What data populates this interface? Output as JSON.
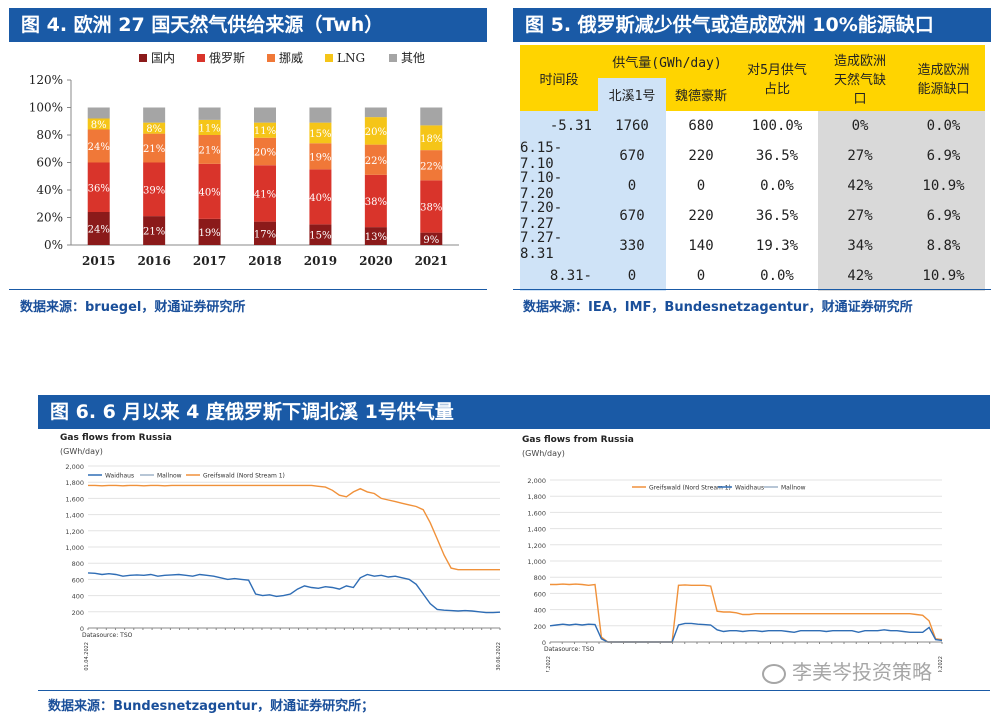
{
  "fig4": {
    "title": "图 4. 欧洲 27 国天然气供给来源（Twh）",
    "source": "数据来源：bruegel，财通证券研究所",
    "chart_data": {
      "type": "bar",
      "stacked": true,
      "categories": [
        "2015",
        "2016",
        "2017",
        "2018",
        "2019",
        "2020",
        "2021"
      ],
      "y_ticks": [
        "0%",
        "20%",
        "40%",
        "60%",
        "80%",
        "100%",
        "120%"
      ],
      "ylim": [
        0,
        120
      ],
      "legend_position": "top",
      "series": [
        {
          "name": "国内",
          "color": "#8b1a1a",
          "values": [
            24,
            21,
            19,
            17,
            15,
            13,
            9
          ],
          "labels": [
            "24%",
            "21%",
            "19%",
            "17%",
            "15%",
            "13%",
            "9%"
          ]
        },
        {
          "name": "俄罗斯",
          "color": "#d9342b",
          "values": [
            36,
            39,
            40,
            41,
            40,
            38,
            38
          ],
          "labels": [
            "36%",
            "39%",
            "40%",
            "41%",
            "40%",
            "38%",
            "38%"
          ]
        },
        {
          "name": "挪威",
          "color": "#f07838",
          "values": [
            24,
            21,
            21,
            20,
            19,
            22,
            22
          ],
          "labels": [
            "24%",
            "21%",
            "21%",
            "20%",
            "19%",
            "22%",
            "22%"
          ]
        },
        {
          "name": "LNG",
          "color": "#f5c518",
          "values": [
            8,
            8,
            11,
            11,
            15,
            20,
            18
          ],
          "labels": [
            "8%",
            "8%",
            "11%",
            "11%",
            "15%",
            "20%",
            "18%"
          ]
        },
        {
          "name": "其他",
          "color": "#a5a5a5",
          "values": [
            8,
            11,
            9,
            11,
            11,
            7,
            13
          ],
          "labels": [
            "",
            "",
            "",
            "",
            "",
            "",
            ""
          ]
        }
      ]
    }
  },
  "fig5": {
    "title": "图 5. 俄罗斯减少供气或造成欧洲 10%能源缺口",
    "source": "数据来源：IEA，IMF，Bundesnetzagentur，财通证券研究所",
    "chart_data": {
      "type": "table",
      "header_period": "时间段",
      "header_supply": "供气量(GWh/day)",
      "header_ns": "北溪1号",
      "header_yamal": "魏德豪斯",
      "header_share": "对5月供气占比",
      "header_gas_gap": "造成欧洲天然气缺口",
      "header_energy_gap": "造成欧洲能源缺口",
      "rows": [
        [
          "-5.31",
          "1760",
          "680",
          "100.0%",
          "0%",
          "0.0%"
        ],
        [
          "6.15-7.10",
          "670",
          "220",
          "36.5%",
          "27%",
          "6.9%"
        ],
        [
          "7.10-7.20",
          "0",
          "0",
          "0.0%",
          "42%",
          "10.9%"
        ],
        [
          "7.20-7.27",
          "670",
          "220",
          "36.5%",
          "27%",
          "6.9%"
        ],
        [
          "7.27-8.31",
          "330",
          "140",
          "19.3%",
          "34%",
          "8.8%"
        ],
        [
          "8.31-",
          "0",
          "0",
          "0.0%",
          "42%",
          "10.9%"
        ]
      ],
      "colors": {
        "header_yellow": "#ffd400",
        "col_blue": "#cfe3f7",
        "gap_gray": "#d9d9d9"
      }
    }
  },
  "fig6": {
    "title": "图 6. 6 月以来 4 度俄罗斯下调北溪 1号供气量",
    "source": "数据来源：Bundesnetzagentur，财通证券研究所；",
    "left": {
      "title": "Gas flows from Russia",
      "unit": "(GWh/day)",
      "datasource": "Datasource: TSO",
      "chart_data": {
        "type": "line",
        "ylim": [
          0,
          2000
        ],
        "y_ticks": [
          "0",
          "200",
          "400",
          "600",
          "800",
          "1,000",
          "1,200",
          "1,400",
          "1,600",
          "1,800",
          "2,000"
        ],
        "x_start": "01.04.2022",
        "x_end": "30.06.2022",
        "legend_position": "top",
        "series": [
          {
            "name": "Waidhaus",
            "color": "#2f6db5",
            "values": [
              680,
              675,
              660,
              670,
              660,
              640,
              650,
              655,
              650,
              660,
              640,
              650,
              655,
              660,
              650,
              640,
              660,
              650,
              640,
              620,
              600,
              610,
              600,
              590,
              420,
              400,
              410,
              390,
              400,
              420,
              480,
              520,
              500,
              490,
              510,
              500,
              480,
              520,
              500,
              620,
              660,
              640,
              650,
              630,
              640,
              620,
              600,
              540,
              420,
              300,
              230,
              220,
              215,
              210,
              215,
              210,
              200,
              190,
              190,
              195
            ]
          },
          {
            "name": "Mallnow",
            "color": "#9fb3c8",
            "values": []
          },
          {
            "name": "Greifswald (Nord Stream 1)",
            "color": "#f0913a",
            "values": [
              1760,
              1760,
              1755,
              1760,
              1760,
              1755,
              1760,
              1760,
              1755,
              1760,
              1760,
              1755,
              1760,
              1760,
              1760,
              1760,
              1760,
              1760,
              1760,
              1760,
              1760,
              1760,
              1760,
              1760,
              1760,
              1760,
              1760,
              1760,
              1760,
              1760,
              1760,
              1760,
              1760,
              1750,
              1740,
              1700,
              1640,
              1620,
              1680,
              1720,
              1680,
              1660,
              1600,
              1580,
              1560,
              1540,
              1520,
              1500,
              1460,
              1300,
              1100,
              900,
              740,
              720,
              720,
              720,
              720,
              720,
              720,
              720
            ]
          }
        ]
      }
    },
    "right": {
      "title": "Gas flows from Russia",
      "unit": "(GWh/day)",
      "datasource": "Datasource: TSO",
      "chart_data": {
        "type": "line",
        "ylim": [
          0,
          2000
        ],
        "y_ticks": [
          "0",
          "200",
          "400",
          "600",
          "800",
          "1,000",
          "1,200",
          "1,400",
          "1,600",
          "1,800",
          "2,000"
        ],
        "x_start": "01.07.2022",
        "x_end": "01.09.2022",
        "legend_position": "top",
        "series": [
          {
            "name": "Greifswald (Nord Stream 1)",
            "color": "#f0913a",
            "values": [
              710,
              710,
              715,
              710,
              715,
              710,
              700,
              710,
              60,
              0,
              0,
              0,
              0,
              0,
              0,
              0,
              0,
              0,
              0,
              0,
              700,
              705,
              700,
              700,
              700,
              690,
              380,
              370,
              370,
              360,
              340,
              340,
              350,
              350,
              350,
              350,
              350,
              350,
              350,
              350,
              350,
              350,
              350,
              350,
              350,
              350,
              350,
              350,
              350,
              350,
              350,
              350,
              350,
              350,
              350,
              350,
              350,
              340,
              330,
              260,
              40,
              30
            ]
          },
          {
            "name": "Waidhaus",
            "color": "#2f6db5",
            "values": [
              200,
              210,
              220,
              210,
              220,
              210,
              220,
              215,
              40,
              0,
              0,
              0,
              0,
              0,
              0,
              0,
              0,
              0,
              0,
              0,
              210,
              230,
              230,
              220,
              215,
              210,
              150,
              130,
              140,
              140,
              130,
              140,
              140,
              130,
              140,
              140,
              140,
              130,
              120,
              140,
              140,
              140,
              140,
              130,
              140,
              140,
              140,
              140,
              120,
              140,
              140,
              140,
              150,
              140,
              140,
              130,
              120,
              120,
              120,
              180,
              30,
              20
            ]
          },
          {
            "name": "Mallnow",
            "color": "#9fb3c8",
            "values": []
          }
        ]
      }
    }
  },
  "watermark": {
    "text": "李美岑投资策略"
  }
}
